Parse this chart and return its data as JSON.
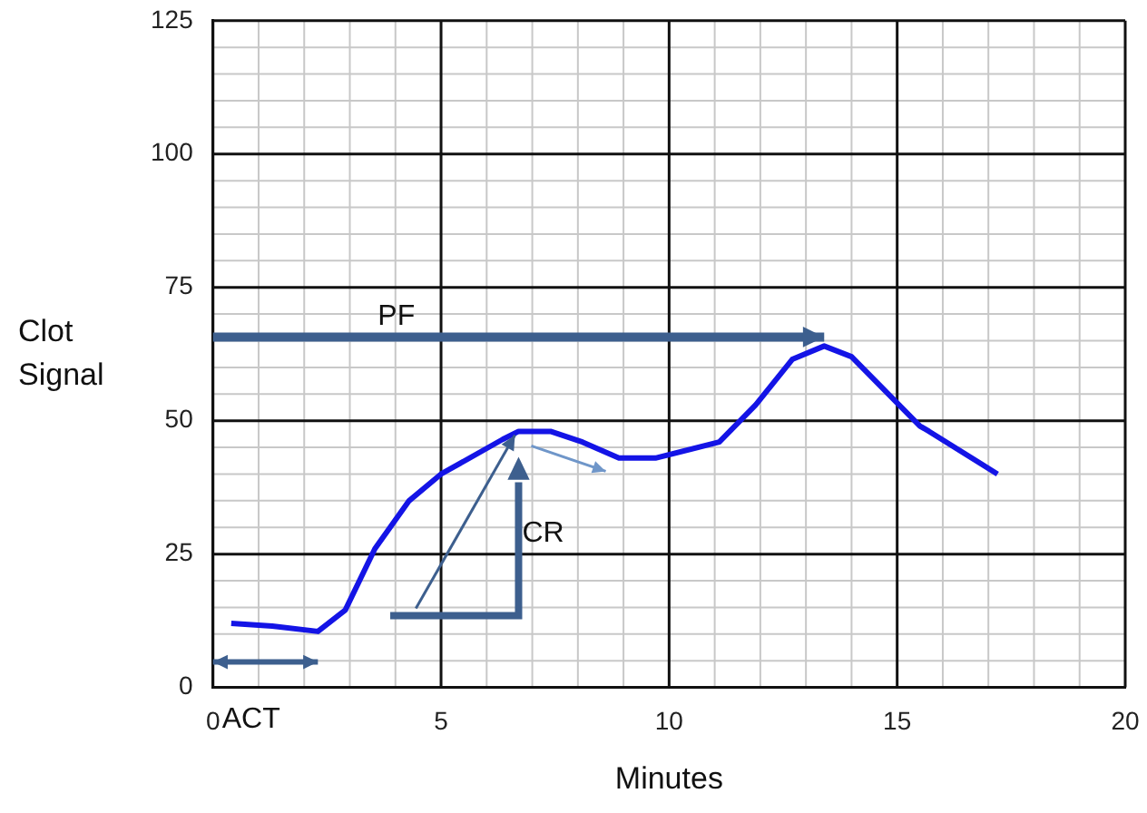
{
  "chart_data": {
    "type": "line",
    "xlabel": "Minutes",
    "ylabel": "Clot Signal",
    "x": [
      0.4,
      1.3,
      2.3,
      2.9,
      3.55,
      4.3,
      5,
      6.35,
      6.7,
      7.4,
      8.1,
      8.9,
      9.7,
      11.1,
      11.9,
      12.7,
      13.4,
      14,
      15.5,
      15.7,
      17.2
    ],
    "values": [
      12,
      11.5,
      10.5,
      14.5,
      26,
      35,
      40,
      46.5,
      48,
      48,
      46,
      43,
      43,
      46,
      53,
      61.5,
      64,
      62,
      49,
      48,
      40
    ],
    "color": "#1414e6",
    "xlim": [
      0,
      20
    ],
    "xticks": [
      0,
      5,
      10,
      15,
      20
    ],
    "ylim": [
      0,
      125
    ],
    "yticks": [
      0,
      25,
      50,
      75,
      100,
      125
    ],
    "grid": true,
    "marker": "none",
    "line_style": "solid",
    "annotations": [
      "ACT",
      "PF",
      "CR"
    ]
  }
}
